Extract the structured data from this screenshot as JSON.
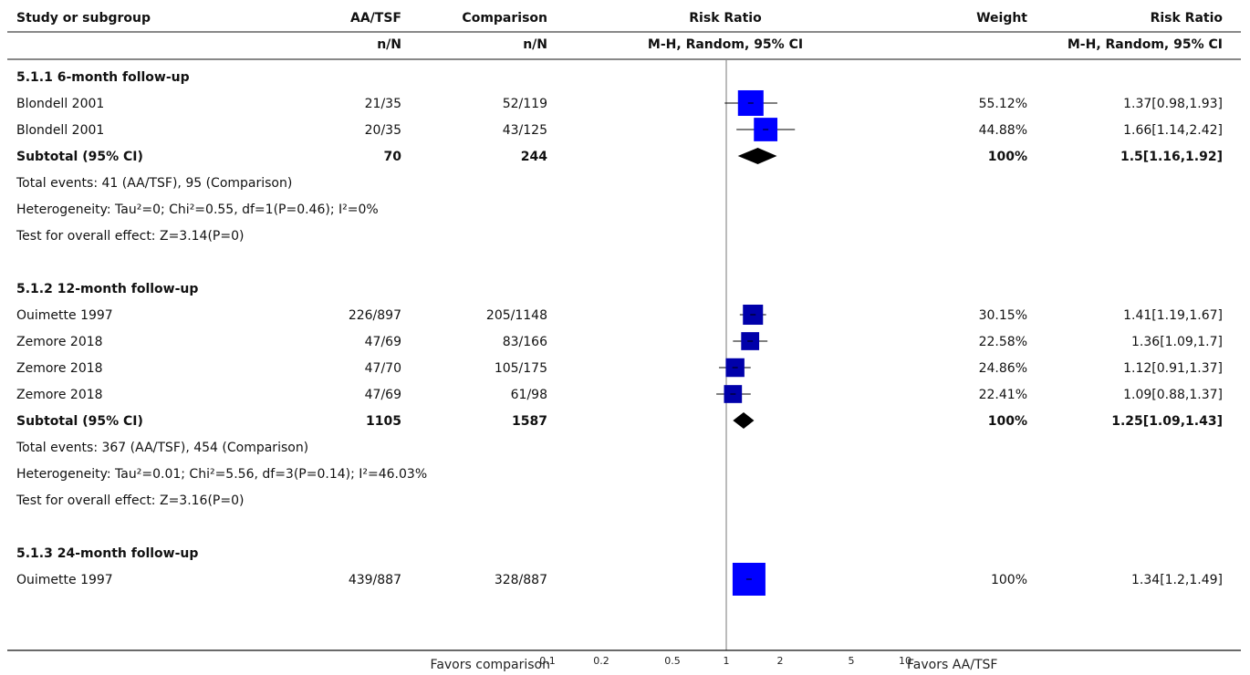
{
  "header": {
    "col_study": "Study or subgroup",
    "col_aa": "AA/TSF",
    "col_aa_sub": "n/N",
    "col_comp": "Comparison",
    "col_comp_sub": "n/N",
    "col_rr": "Risk Ratio",
    "col_rr_sub": "M-H, Random, 95% CI",
    "col_weight": "Weight",
    "col_rr2": "Risk Ratio",
    "col_rr2_sub": "M-H, Random, 95% CI"
  },
  "axis": {
    "ticks": [
      "0.1",
      "0.2",
      "0.5",
      "1",
      "2",
      "5",
      "10"
    ],
    "favors_left": "Favors comparison",
    "favors_right": "Favors AA/TSF"
  },
  "chart_data": {
    "type": "forest",
    "scale": "log",
    "xlim": [
      0.1,
      10
    ],
    "null_line": 1,
    "subgroups": [
      {
        "title": "5.1.1 6-month follow-up",
        "studies": [
          {
            "name": "Blondell 2001",
            "aa": "21/35",
            "comp": "52/119",
            "weight": "55.12%",
            "rr_text": "1.37[0.98,1.93]",
            "rr": 1.37,
            "lo": 0.98,
            "hi": 1.93,
            "w": 55.12
          },
          {
            "name": "Blondell 2001",
            "aa": "20/35",
            "comp": "43/125",
            "weight": "44.88%",
            "rr_text": "1.66[1.14,2.42]",
            "rr": 1.66,
            "lo": 1.14,
            "hi": 2.42,
            "w": 44.88
          }
        ],
        "subtotal": {
          "label": "Subtotal (95% CI)",
          "aa": "70",
          "comp": "244",
          "weight": "100%",
          "rr_text": "1.5[1.16,1.92]",
          "rr": 1.5,
          "lo": 1.16,
          "hi": 1.92
        },
        "notes": [
          "Total events: 41 (AA/TSF), 95 (Comparison)",
          "Heterogeneity: Tau²=0; Chi²=0.55, df=1(P=0.46); I²=0%",
          "Test for overall effect: Z=3.14(P=0)"
        ]
      },
      {
        "title": "5.1.2 12-month follow-up",
        "studies": [
          {
            "name": "Ouimette 1997",
            "aa": "226/897",
            "comp": "205/1148",
            "weight": "30.15%",
            "rr_text": "1.41[1.19,1.67]",
            "rr": 1.41,
            "lo": 1.19,
            "hi": 1.67,
            "w": 30.15
          },
          {
            "name": "Zemore 2018",
            "aa": "47/69",
            "comp": "83/166",
            "weight": "22.58%",
            "rr_text": "1.36[1.09,1.7]",
            "rr": 1.36,
            "lo": 1.09,
            "hi": 1.7,
            "w": 22.58
          },
          {
            "name": "Zemore 2018",
            "aa": "47/70",
            "comp": "105/175",
            "weight": "24.86%",
            "rr_text": "1.12[0.91,1.37]",
            "rr": 1.12,
            "lo": 0.91,
            "hi": 1.37,
            "w": 24.86
          },
          {
            "name": "Zemore 2018",
            "aa": "47/69",
            "comp": "61/98",
            "weight": "22.41%",
            "rr_text": "1.09[0.88,1.37]",
            "rr": 1.09,
            "lo": 0.88,
            "hi": 1.37,
            "w": 22.41
          }
        ],
        "subtotal": {
          "label": "Subtotal (95% CI)",
          "aa": "1105",
          "comp": "1587",
          "weight": "100%",
          "rr_text": "1.25[1.09,1.43]",
          "rr": 1.25,
          "lo": 1.09,
          "hi": 1.43
        },
        "notes": [
          "Total events: 367 (AA/TSF), 454 (Comparison)",
          "Heterogeneity: Tau²=0.01; Chi²=5.56, df=3(P=0.14); I²=46.03%",
          "Test for overall effect: Z=3.16(P=0)"
        ]
      },
      {
        "title": "5.1.3 24-month follow-up",
        "studies": [
          {
            "name": "Ouimette 1997",
            "aa": "439/887",
            "comp": "328/887",
            "weight": "100%",
            "rr_text": "1.34[1.2,1.49]",
            "rr": 1.34,
            "lo": 1.2,
            "hi": 1.49,
            "w": 100
          }
        ],
        "subtotal": null,
        "notes": []
      }
    ]
  }
}
